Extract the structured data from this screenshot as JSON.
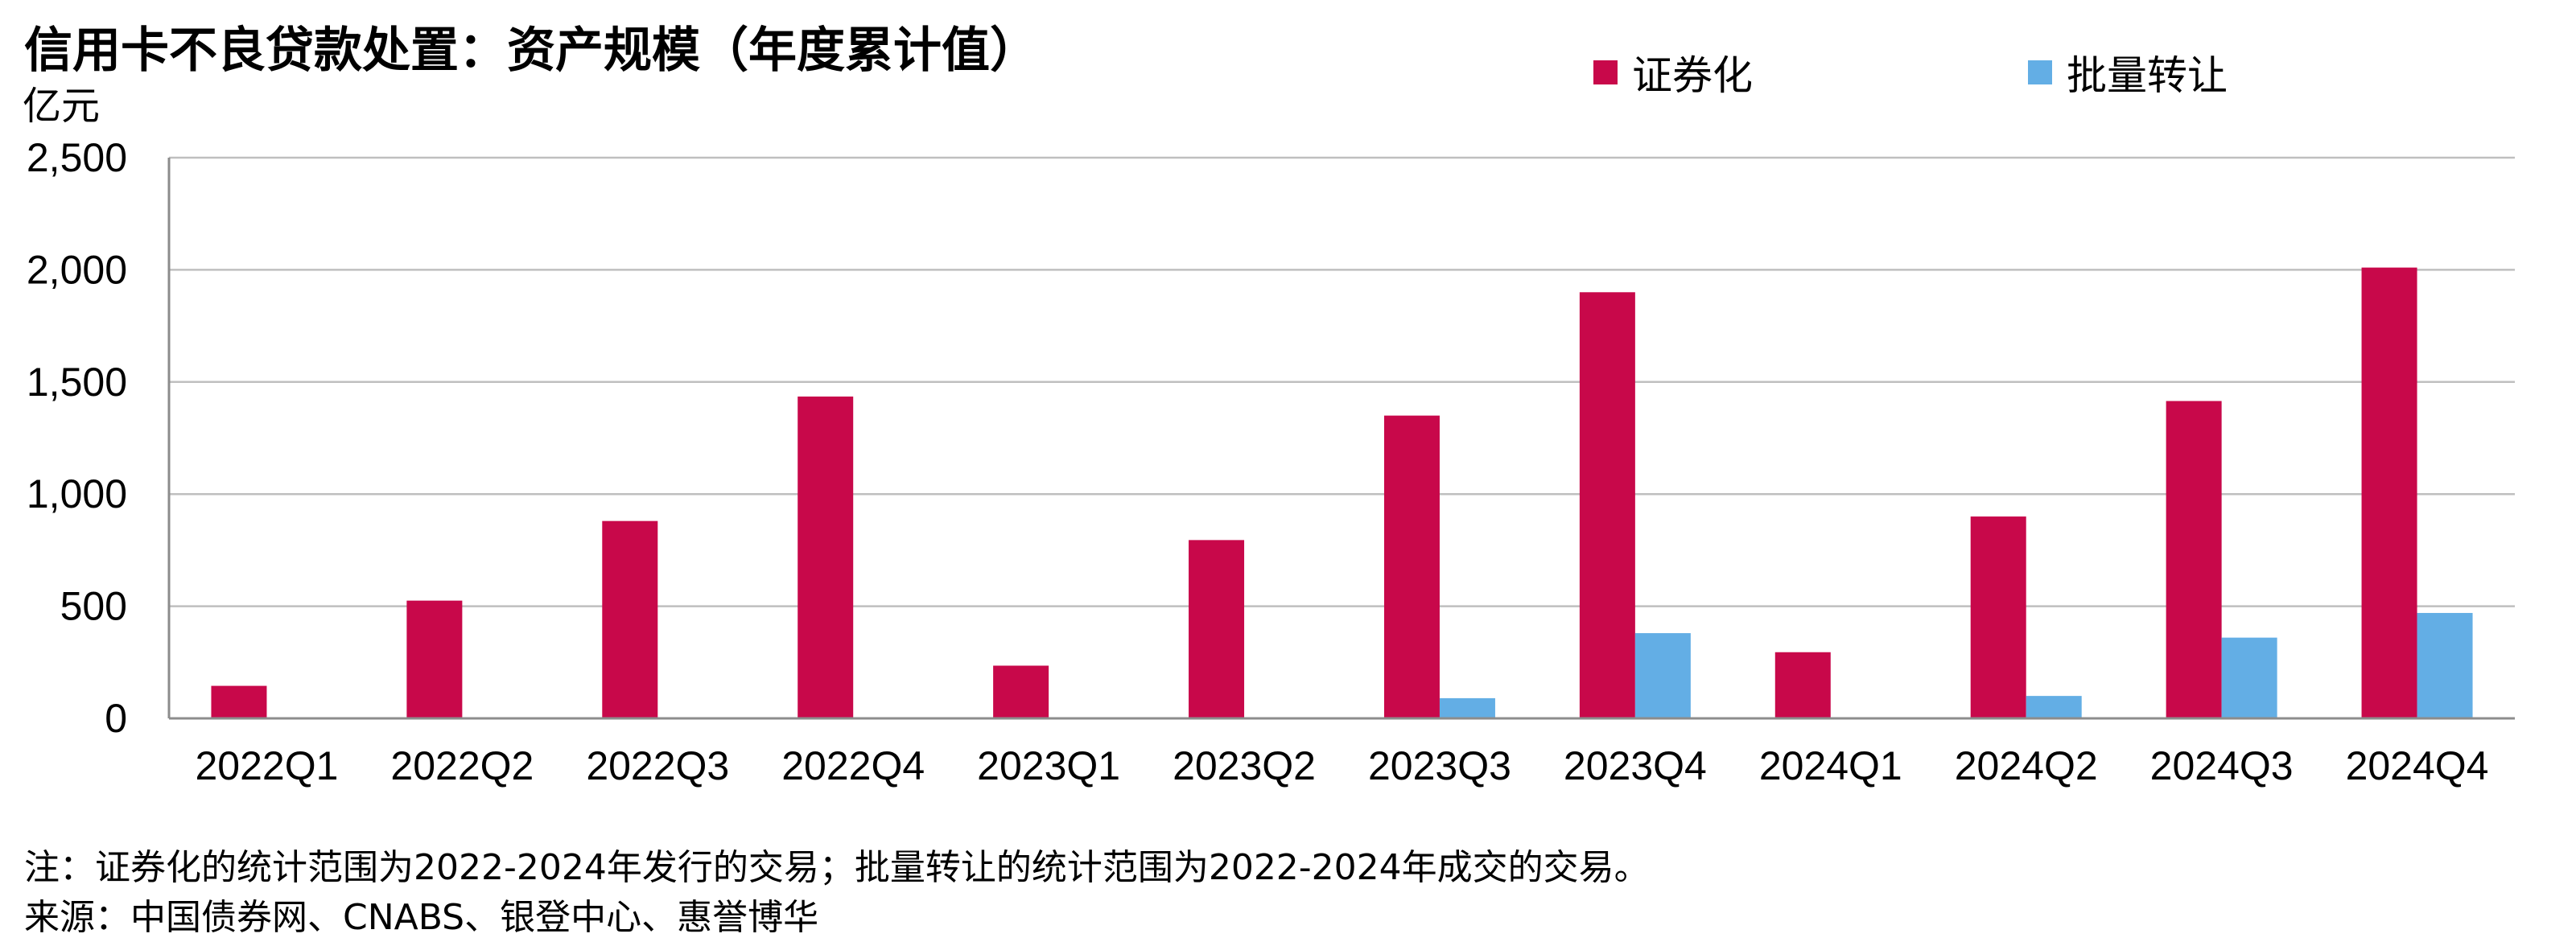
{
  "title": "信用卡不良贷款处置：资产规模（年度累计值）",
  "unit": "亿元",
  "notes": [
    "注：证券化的统计范围为2022-2024年发行的交易；批量转让的统计范围为2022-2024年成交的交易。",
    "来源：中国债券网、CNABS、银登中心、惠誉博华"
  ],
  "chart_data": {
    "type": "bar",
    "title": "信用卡不良贷款处置：资产规模（年度累计值）",
    "ylabel": "亿元",
    "xlabel": "",
    "ylim": [
      0,
      2500
    ],
    "yticks": [
      0,
      500,
      1000,
      1500,
      2000,
      2500
    ],
    "ytick_labels": [
      "0",
      "500",
      "1,000",
      "1,500",
      "2,000",
      "2,500"
    ],
    "grid": true,
    "legend_position": "top",
    "categories": [
      "2022Q1",
      "2022Q2",
      "2022Q3",
      "2022Q4",
      "2023Q1",
      "2023Q2",
      "2023Q3",
      "2023Q4",
      "2024Q1",
      "2024Q2",
      "2024Q3",
      "2024Q4"
    ],
    "series": [
      {
        "name": "证券化",
        "color": "#C8084A",
        "values": [
          145,
          525,
          880,
          1435,
          235,
          795,
          1350,
          1900,
          295,
          900,
          1415,
          2010
        ]
      },
      {
        "name": "批量转让",
        "color": "#63AEE5",
        "values": [
          0,
          0,
          0,
          0,
          0,
          0,
          90,
          380,
          5,
          100,
          360,
          470
        ]
      }
    ]
  }
}
